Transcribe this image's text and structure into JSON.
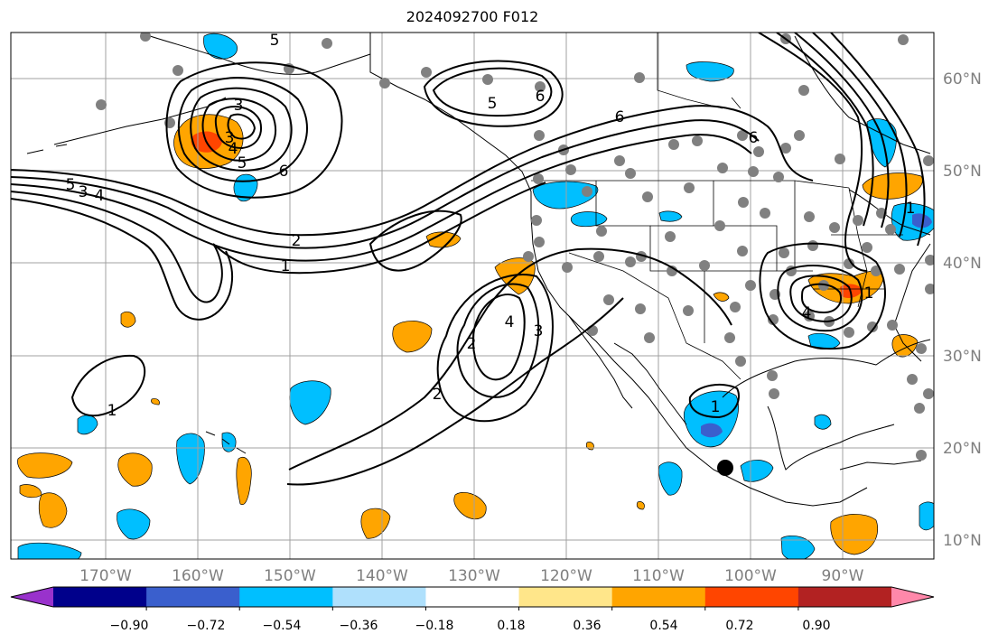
{
  "title": "2024092700 F012",
  "lon_labels": [
    "170°W",
    "160°W",
    "150°W",
    "140°W",
    "130°W",
    "120°W",
    "110°W",
    "100°W",
    "90°W"
  ],
  "lat_labels": [
    "60°N",
    "50°N",
    "40°N",
    "30°N",
    "20°N",
    "10°N"
  ],
  "colorbar": {
    "ticks": [
      "−0.90",
      "−0.72",
      "−0.54",
      "−0.36",
      "−0.18",
      "0.18",
      "0.36",
      "0.54",
      "0.72",
      "0.90"
    ],
    "colors": [
      "#9932cc",
      "#00008b",
      "#3a5fcd",
      "#00bfff",
      "#afe0fc",
      "#ffffff",
      "#ffe68a",
      "#ffa500",
      "#ff4500",
      "#b22222",
      "#ff88aa"
    ],
    "extend": "both"
  },
  "contour_labels": [
    "5",
    "3",
    "6",
    "5",
    "6",
    "3",
    "4",
    "5",
    "6",
    "5",
    "4",
    "3",
    "6",
    "2",
    "1",
    "1",
    "4",
    "3",
    "2",
    "2",
    "1",
    "4",
    "1",
    "1"
  ],
  "colors": {
    "land_outline": "#000000",
    "gridline": "#a0a0a0",
    "station_marker": "#808080",
    "highlight_marker": "#000000",
    "contour": "#000000"
  }
}
